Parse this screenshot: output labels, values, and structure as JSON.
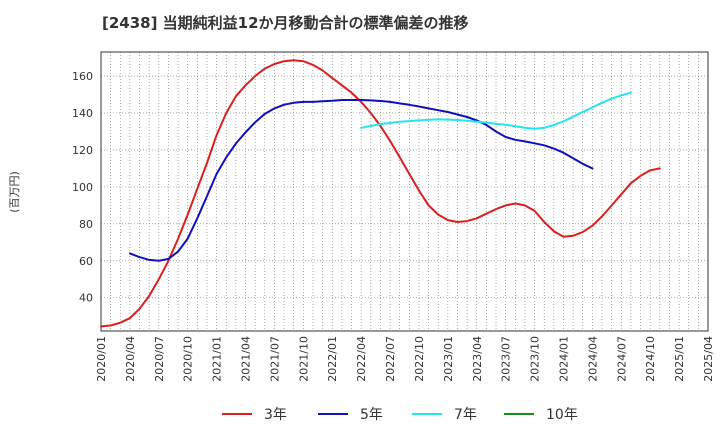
{
  "chart_data": {
    "type": "line",
    "title": "[2438]  当期純利益12か月移動合計の標準偏差の推移",
    "xlabel": "",
    "ylabel": "(百万円)",
    "x_start": "2020-01",
    "x_end": "2025-04",
    "ylim": [
      22,
      173
    ],
    "yticks": [
      40,
      60,
      80,
      100,
      120,
      140,
      160
    ],
    "xticks": [
      "2020/01",
      "2020/04",
      "2020/07",
      "2020/10",
      "2021/01",
      "2021/04",
      "2021/07",
      "2021/10",
      "2022/01",
      "2022/04",
      "2022/07",
      "2022/10",
      "2023/01",
      "2023/04",
      "2023/07",
      "2023/10",
      "2024/01",
      "2024/04",
      "2024/07",
      "2024/10",
      "2025/01",
      "2025/04"
    ],
    "grid": true,
    "legend_position": "bottom",
    "series": [
      {
        "name": "3年",
        "color": "#dd1e1e",
        "start": "2020-01",
        "values": [
          24.5,
          25,
          26.5,
          29,
          34,
          41,
          50,
          60,
          72,
          85,
          99,
          113,
          128,
          140,
          149,
          155,
          160,
          164,
          166.5,
          168,
          168.5,
          168,
          166,
          163,
          159,
          155,
          151,
          146,
          140,
          133,
          125,
          116,
          107,
          98,
          90,
          85,
          82,
          81,
          81.5,
          83,
          85.5,
          88,
          90,
          91,
          90,
          87,
          81,
          76,
          73,
          73.5,
          75.5,
          79,
          84,
          90,
          96,
          102,
          106,
          109,
          110
        ]
      },
      {
        "name": "5年",
        "color": "#1010c0",
        "start": "2020-04",
        "values": [
          64,
          62,
          60.5,
          60,
          61,
          65,
          72,
          83,
          95,
          107,
          116,
          123.5,
          129.5,
          135,
          139.5,
          142.5,
          144.5,
          145.5,
          146,
          146,
          146.3,
          146.6,
          147,
          147,
          147,
          146.8,
          146.5,
          146,
          145.2,
          144.4,
          143.5,
          142.5,
          141.5,
          140.5,
          139.2,
          137.8,
          136,
          133.5,
          130,
          127,
          125.5,
          124.6,
          123.6,
          122.5,
          120.7,
          118.5,
          115.5,
          112.5,
          110
        ]
      },
      {
        "name": "7年",
        "color": "#22e6ee",
        "start": "2022-04",
        "values": [
          132,
          133,
          134,
          134.6,
          135.2,
          135.6,
          136,
          136.3,
          136.5,
          136.4,
          136.2,
          135.8,
          135.3,
          134.8,
          134.2,
          133.6,
          132.8,
          132,
          131.5,
          132,
          133.5,
          135.5,
          138,
          140.5,
          143,
          145.5,
          147.8,
          149.5,
          151
        ]
      },
      {
        "name": "10年",
        "color": "#1a8a1a",
        "start": "2025-01",
        "values": []
      }
    ]
  }
}
